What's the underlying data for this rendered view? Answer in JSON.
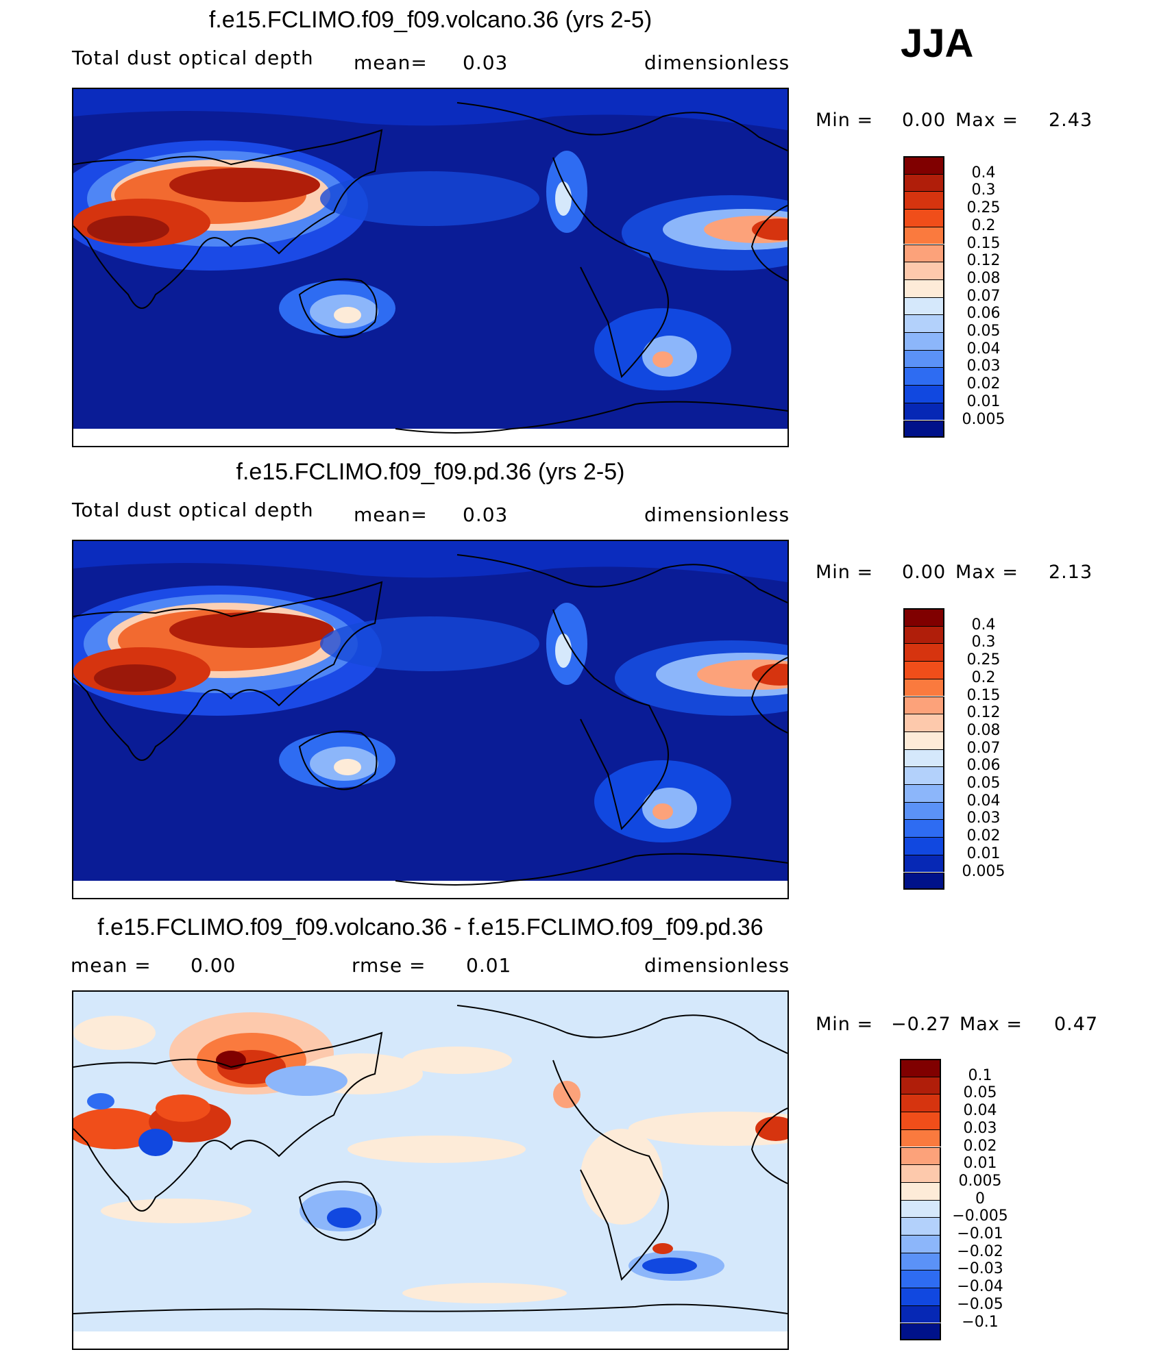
{
  "season": "JJA",
  "panels": [
    {
      "title": "f.e15.FCLIMO.f09_f09.volcano.36 (yrs 2-5)",
      "left_label": "Total dust optical depth",
      "mean_label": "mean=",
      "mean_value": "0.03",
      "units": "dimensionless",
      "min_label": "Min  =",
      "min_value": "0.00",
      "max_label": "Max  =",
      "max_value": "2.43",
      "colorbar_levels": [
        "0.4",
        "0.3",
        "0.25",
        "0.2",
        "0.15",
        "0.12",
        "0.08",
        "0.07",
        "0.06",
        "0.05",
        "0.04",
        "0.03",
        "0.02",
        "0.01",
        "0.005"
      ],
      "colorbar_colors": [
        "#800000",
        "#b01e0a",
        "#d6340f",
        "#f04e1a",
        "#fa7a3e",
        "#fca27a",
        "#fdc9ac",
        "#fdebd8",
        "#d5e8fb",
        "#b3d1fb",
        "#8cb6fa",
        "#5b92f7",
        "#2e6cf2",
        "#1148e0",
        "#0628b5",
        "#00128a"
      ]
    },
    {
      "title": "f.e15.FCLIMO.f09_f09.pd.36 (yrs 2-5)",
      "left_label": "Total dust optical depth",
      "mean_label": "mean=",
      "mean_value": "0.03",
      "units": "dimensionless",
      "min_label": "Min  =",
      "min_value": "0.00",
      "max_label": "Max  =",
      "max_value": "2.13",
      "colorbar_levels": [
        "0.4",
        "0.3",
        "0.25",
        "0.2",
        "0.15",
        "0.12",
        "0.08",
        "0.07",
        "0.06",
        "0.05",
        "0.04",
        "0.03",
        "0.02",
        "0.01",
        "0.005"
      ],
      "colorbar_colors": [
        "#800000",
        "#b01e0a",
        "#d6340f",
        "#f04e1a",
        "#fa7a3e",
        "#fca27a",
        "#fdc9ac",
        "#fdebd8",
        "#d5e8fb",
        "#b3d1fb",
        "#8cb6fa",
        "#5b92f7",
        "#2e6cf2",
        "#1148e0",
        "#0628b5",
        "#00128a"
      ]
    },
    {
      "title": "f.e15.FCLIMO.f09_f09.volcano.36 - f.e15.FCLIMO.f09_f09.pd.36",
      "left_label": "mean  =",
      "mean_label": "",
      "mean_value": "0.00",
      "rmse_label": "rmse  =",
      "rmse_value": "0.01",
      "units": "dimensionless",
      "min_label": "Min  =",
      "min_value": "−0.27",
      "max_label": "Max  =",
      "max_value": "0.47",
      "colorbar_levels": [
        "0.1",
        "0.05",
        "0.04",
        "0.03",
        "0.02",
        "0.01",
        "0.005",
        "0",
        "−0.005",
        "−0.01",
        "−0.02",
        "−0.03",
        "−0.04",
        "−0.05",
        "−0.1"
      ],
      "colorbar_colors": [
        "#800000",
        "#b01e0a",
        "#d6340f",
        "#f04e1a",
        "#fa7a3e",
        "#fca27a",
        "#fdc9ac",
        "#fdebd8",
        "#d5e8fb",
        "#b3d1fb",
        "#8cb6fa",
        "#5b92f7",
        "#2e6cf2",
        "#1148e0",
        "#0628b5",
        "#00128a"
      ]
    }
  ]
}
